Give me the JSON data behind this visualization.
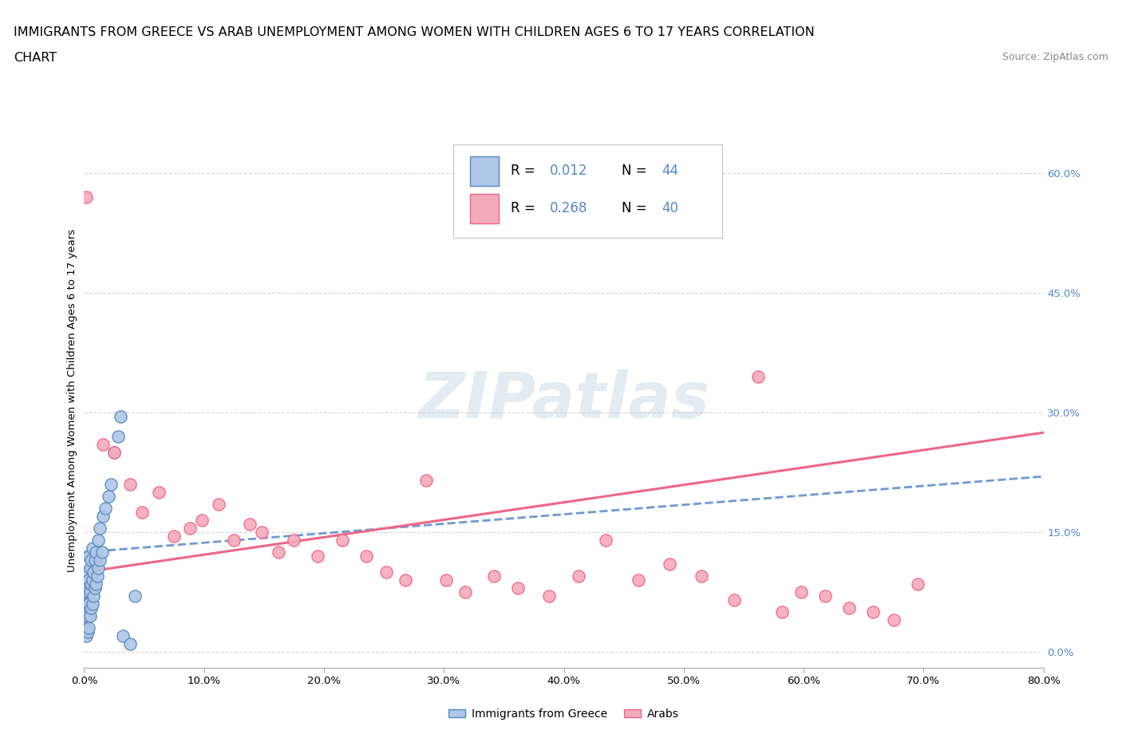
{
  "title_line1": "IMMIGRANTS FROM GREECE VS ARAB UNEMPLOYMENT AMONG WOMEN WITH CHILDREN AGES 6 TO 17 YEARS CORRELATION",
  "title_line2": "CHART",
  "source": "Source: ZipAtlas.com",
  "ylabel": "Unemployment Among Women with Children Ages 6 to 17 years",
  "xlim": [
    0.0,
    0.8
  ],
  "ylim": [
    -0.02,
    0.65
  ],
  "x_ticks": [
    0.0,
    0.1,
    0.2,
    0.3,
    0.4,
    0.5,
    0.6,
    0.7,
    0.8
  ],
  "x_tick_labels": [
    "0.0%",
    "10.0%",
    "20.0%",
    "30.0%",
    "40.0%",
    "50.0%",
    "60.0%",
    "70.0%",
    "80.0%"
  ],
  "y_ticks": [
    0.0,
    0.15,
    0.3,
    0.45,
    0.6
  ],
  "y_tick_labels_right": [
    "0.0%",
    "15.0%",
    "30.0%",
    "45.0%",
    "60.0%"
  ],
  "blue_fill_color": "#aec6e8",
  "pink_fill_color": "#f5aaba",
  "blue_edge_color": "#5588bb",
  "pink_edge_color": "#ee6688",
  "blue_line_color": "#5588cc",
  "pink_line_color": "#ee6688",
  "grid_color": "#cccccc",
  "right_tick_color": "#5588cc",
  "legend_R1": "R = ",
  "legend_V1": "0.012",
  "legend_N1_label": "N = ",
  "legend_N1_val": "44",
  "legend_R2": "R = ",
  "legend_V2": "0.268",
  "legend_N2_label": "N = ",
  "legend_N2_val": "40",
  "blue_scatter_x": [
    0.001,
    0.001,
    0.002,
    0.002,
    0.002,
    0.003,
    0.003,
    0.003,
    0.003,
    0.004,
    0.004,
    0.004,
    0.004,
    0.005,
    0.005,
    0.005,
    0.006,
    0.006,
    0.006,
    0.007,
    0.007,
    0.007,
    0.008,
    0.008,
    0.009,
    0.009,
    0.01,
    0.01,
    0.011,
    0.012,
    0.012,
    0.013,
    0.013,
    0.015,
    0.016,
    0.018,
    0.02,
    0.022,
    0.025,
    0.028,
    0.03,
    0.032,
    0.038,
    0.042
  ],
  "blue_scatter_y": [
    0.03,
    0.06,
    0.02,
    0.05,
    0.08,
    0.025,
    0.045,
    0.075,
    0.1,
    0.03,
    0.06,
    0.09,
    0.12,
    0.045,
    0.075,
    0.105,
    0.055,
    0.085,
    0.115,
    0.06,
    0.09,
    0.13,
    0.07,
    0.1,
    0.08,
    0.115,
    0.085,
    0.125,
    0.095,
    0.105,
    0.14,
    0.115,
    0.155,
    0.125,
    0.17,
    0.18,
    0.195,
    0.21,
    0.25,
    0.27,
    0.295,
    0.02,
    0.01,
    0.07
  ],
  "pink_scatter_x": [
    0.002,
    0.016,
    0.025,
    0.038,
    0.048,
    0.062,
    0.075,
    0.088,
    0.098,
    0.112,
    0.125,
    0.138,
    0.148,
    0.162,
    0.175,
    0.195,
    0.215,
    0.235,
    0.252,
    0.268,
    0.285,
    0.302,
    0.318,
    0.342,
    0.362,
    0.388,
    0.412,
    0.435,
    0.462,
    0.488,
    0.515,
    0.542,
    0.562,
    0.582,
    0.598,
    0.618,
    0.638,
    0.658,
    0.675,
    0.695
  ],
  "pink_scatter_y": [
    0.57,
    0.26,
    0.25,
    0.21,
    0.175,
    0.2,
    0.145,
    0.155,
    0.165,
    0.185,
    0.14,
    0.16,
    0.15,
    0.125,
    0.14,
    0.12,
    0.14,
    0.12,
    0.1,
    0.09,
    0.215,
    0.09,
    0.075,
    0.095,
    0.08,
    0.07,
    0.095,
    0.14,
    0.09,
    0.11,
    0.095,
    0.065,
    0.345,
    0.05,
    0.075,
    0.07,
    0.055,
    0.05,
    0.04,
    0.085
  ],
  "blue_trend_x0": 0.0,
  "blue_trend_y0": 0.125,
  "blue_trend_x1": 0.8,
  "blue_trend_y1": 0.22,
  "pink_trend_x0": 0.0,
  "pink_trend_y0": 0.1,
  "pink_trend_x1": 0.8,
  "pink_trend_y1": 0.275
}
